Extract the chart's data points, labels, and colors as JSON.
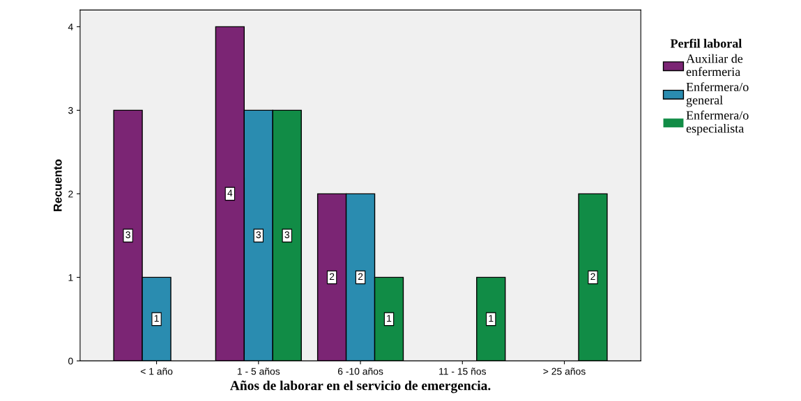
{
  "chart_data": {
    "type": "bar",
    "xlabel": "Años de laborar en el servicio de emergencia.",
    "ylabel": "Recuento",
    "legend_title": "Perfil laboral",
    "categories": [
      "< 1 año",
      "1 - 5 años",
      "6 -10 años",
      "11 - 15 ños",
      "> 25 años"
    ],
    "series": [
      {
        "name": "Auxiliar de\nenfermeria",
        "color": "#7b2574",
        "values": [
          3,
          4,
          2,
          0,
          0
        ],
        "value_labels": [
          "3",
          "4",
          "2",
          null,
          null
        ]
      },
      {
        "name": "Enfermera/o\ngeneral",
        "color": "#2a8cb0",
        "values": [
          1,
          3,
          2,
          0,
          0
        ],
        "value_labels": [
          "1",
          "3",
          "2",
          null,
          null
        ]
      },
      {
        "name": "Enfermera/o\nespecialista",
        "color": "#118c46",
        "values": [
          0,
          3,
          1,
          1,
          2
        ],
        "value_labels": [
          null,
          "3",
          "1",
          "1",
          "2"
        ]
      }
    ],
    "ylim": [
      0,
      4.2
    ],
    "yticks": [
      0,
      1,
      2,
      3,
      4
    ],
    "grid": false,
    "legend": "right"
  }
}
